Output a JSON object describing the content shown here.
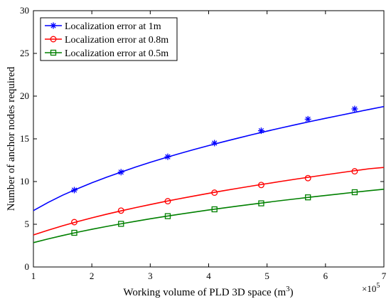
{
  "chart_data": {
    "type": "line",
    "title": "",
    "xlabel_text": "Working volume of PLD  3D space (m",
    "xlabel_sup": "3",
    "xlabel_close": ")",
    "ylabel": "Number of anchor nodes required",
    "x_exponent_base": "×10",
    "x_exponent_power": "5",
    "xlim": [
      1,
      7
    ],
    "ylim": [
      0,
      30
    ],
    "xticks": [
      "1",
      "2",
      "3",
      "4",
      "5",
      "6",
      "7"
    ],
    "yticks": [
      "0",
      "5",
      "10",
      "15",
      "20",
      "25",
      "30"
    ],
    "grid": false,
    "legend_position": "top-left",
    "curve_x": [
      1.0,
      1.25,
      1.5,
      1.75,
      2.0,
      2.25,
      2.5,
      2.75,
      3.0,
      3.25,
      3.5,
      3.75,
      4.0,
      4.25,
      4.5,
      4.75,
      5.0,
      5.25,
      5.5,
      5.75,
      6.0,
      6.25,
      6.5,
      6.75,
      7.0
    ],
    "series": [
      {
        "name": "Localization error at 1m",
        "color": "#0000ff",
        "marker": "asterisk",
        "marker_x": [
          1.7,
          2.5,
          3.3,
          4.1,
          4.9,
          5.7,
          6.5
        ],
        "marker_y": [
          9.0,
          11.1,
          12.9,
          14.5,
          15.95,
          17.3,
          18.5
        ],
        "curve_y": [
          6.6,
          7.55,
          8.4,
          9.15,
          9.85,
          10.5,
          11.1,
          11.7,
          12.25,
          12.77,
          13.27,
          13.75,
          14.21,
          14.65,
          15.08,
          15.5,
          15.9,
          16.29,
          16.67,
          17.04,
          17.4,
          17.75,
          18.1,
          18.44,
          18.78
        ]
      },
      {
        "name": "Localization error at 0.8m",
        "color": "#ff0000",
        "marker": "circle",
        "marker_x": [
          1.7,
          2.5,
          3.3,
          4.1,
          4.9,
          5.7,
          6.5
        ],
        "marker_y": [
          5.25,
          6.6,
          7.7,
          8.7,
          9.6,
          10.4,
          11.2
        ],
        "curve_y": [
          3.75,
          4.3,
          4.82,
          5.3,
          5.75,
          6.17,
          6.57,
          6.95,
          7.31,
          7.66,
          7.99,
          8.31,
          8.62,
          8.92,
          9.21,
          9.49,
          9.76,
          10.03,
          10.29,
          10.54,
          10.79,
          11.03,
          11.27,
          11.5,
          11.65
        ]
      },
      {
        "name": "Localization error at 0.5m",
        "color": "#008000",
        "marker": "square",
        "marker_x": [
          1.7,
          2.5,
          3.3,
          4.1,
          4.9,
          5.7,
          6.5
        ],
        "marker_y": [
          4.0,
          5.05,
          5.95,
          6.75,
          7.45,
          8.15,
          8.75
        ],
        "curve_y": [
          2.85,
          3.28,
          3.68,
          4.06,
          4.41,
          4.74,
          5.05,
          5.35,
          5.64,
          5.91,
          6.17,
          6.42,
          6.67,
          6.9,
          7.13,
          7.35,
          7.57,
          7.78,
          7.98,
          8.18,
          8.37,
          8.56,
          8.75,
          8.93,
          9.1
        ]
      }
    ]
  }
}
